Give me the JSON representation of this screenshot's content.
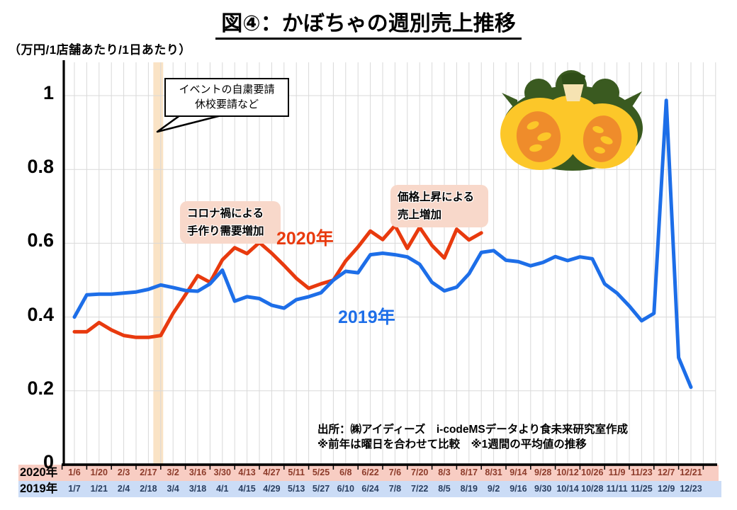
{
  "title": "図④：かぼちゃの週別売上推移",
  "unit_label": "（万円/1店舗あたり/1日あたり）",
  "callout": {
    "line1": "イベントの自粛要請",
    "line2": "休校要請など"
  },
  "annotation_corona": {
    "line1": "コロナ禍による",
    "line2": "手作り需要増加"
  },
  "annotation_price": {
    "line1": "価格上昇による",
    "line2": "売上増加"
  },
  "source": {
    "line1": "出所：㈱アイディーズ　i-codeMSデータより食未来研究室作成",
    "line2": "※前年は曜日を合わせて比較　※1週間の平均値の推移"
  },
  "colors": {
    "grid": "#d9d9d9",
    "axis": "#000000",
    "band": "#fae3c5",
    "annotation_box_bg": "#f8d8ca"
  },
  "chart_data": {
    "type": "line",
    "title": "図④：かぼちゃの週別売上推移",
    "unit_label": "（万円/1店舗あたり/1日あたり）",
    "ylim": [
      0,
      1.05
    ],
    "y_ticks": [
      "1",
      "0.8",
      "0.6",
      "0.4",
      "0.2",
      "0"
    ],
    "grid": true,
    "x_unit": "week (labels every 2 weeks)",
    "highlight_band": {
      "week_from": 7.4,
      "week_to": 8.2,
      "color": "#fae3c5",
      "label": "イベントの自粛要請 休校要請など"
    },
    "x_axis_rows": [
      {
        "label": "2020年",
        "text_color": "#8c3b2a",
        "bg_color": "#f8cdc3",
        "dates": [
          "1/6",
          "1/20",
          "2/3",
          "2/17",
          "3/2",
          "3/16",
          "3/30",
          "4/13",
          "4/27",
          "5/11",
          "5/25",
          "6/8",
          "6/22",
          "7/6",
          "7/20",
          "8/3",
          "8/17",
          "8/31",
          "9/14",
          "9/28",
          "10/12",
          "10/26",
          "11/9",
          "11/23",
          "12/7",
          "12/21"
        ]
      },
      {
        "label": "2019年",
        "text_color": "#2a3f60",
        "bg_color": "#cbdcf6",
        "dates": [
          "1/7",
          "1/21",
          "2/4",
          "2/18",
          "3/4",
          "3/18",
          "4/1",
          "4/15",
          "4/29",
          "5/13",
          "5/27",
          "6/10",
          "6/24",
          "7/8",
          "7/22",
          "8/5",
          "8/19",
          "9/2",
          "9/16",
          "9/30",
          "10/14",
          "10/28",
          "11/11",
          "11/25",
          "12/9",
          "12/23"
        ]
      }
    ],
    "series": [
      {
        "name": "2020年",
        "color": "#e83a0e",
        "first_week": "1/6",
        "last_week": "8/24",
        "values": [
          0.36,
          0.36,
          0.385,
          0.365,
          0.35,
          0.345,
          0.345,
          0.35,
          0.41,
          0.46,
          0.512,
          0.494,
          0.555,
          0.588,
          0.572,
          0.602,
          0.573,
          0.54,
          0.505,
          0.478,
          0.49,
          0.5,
          0.552,
          0.59,
          0.633,
          0.61,
          0.648,
          0.586,
          0.643,
          0.594,
          0.56,
          0.638,
          0.609,
          0.628
        ]
      },
      {
        "name": "2019年",
        "color": "#1d6ee8",
        "first_week": "1/7",
        "last_week": "12/23",
        "values": [
          0.4,
          0.46,
          0.462,
          0.462,
          0.465,
          0.468,
          0.475,
          0.487,
          0.48,
          0.472,
          0.47,
          0.49,
          0.527,
          0.443,
          0.455,
          0.45,
          0.432,
          0.424,
          0.447,
          0.455,
          0.466,
          0.5,
          0.524,
          0.52,
          0.569,
          0.573,
          0.569,
          0.563,
          0.543,
          0.494,
          0.471,
          0.481,
          0.517,
          0.575,
          0.58,
          0.554,
          0.55,
          0.539,
          0.548,
          0.564,
          0.553,
          0.563,
          0.558,
          0.49,
          0.465,
          0.43,
          0.39,
          0.41,
          0.987,
          0.29,
          0.21
        ]
      }
    ]
  }
}
